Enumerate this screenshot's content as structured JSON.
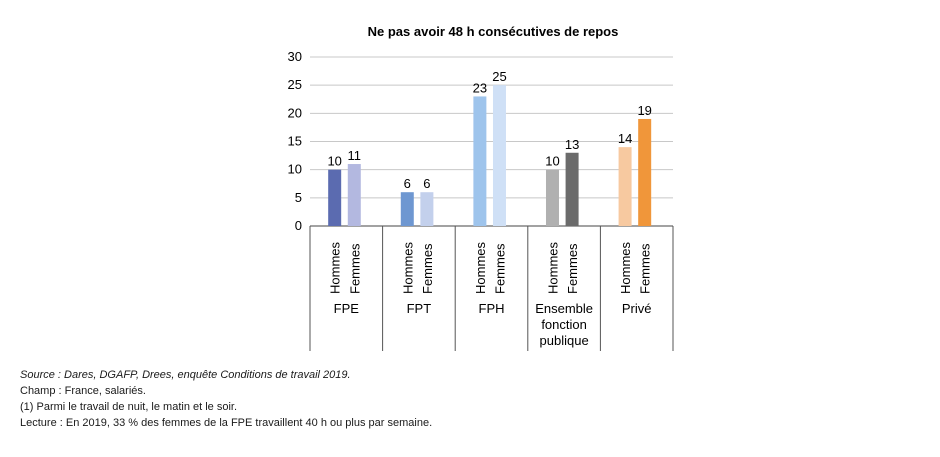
{
  "chart_data": {
    "type": "bar",
    "title": "Ne pas avoir 48 h consécutives de repos",
    "ylim": [
      0,
      30
    ],
    "yticks": [
      0,
      5,
      10,
      15,
      20,
      25,
      30
    ],
    "grid": true,
    "series_labels": [
      "Hommes",
      "Femmes"
    ],
    "categories": [
      {
        "label_lines": [
          "FPE"
        ],
        "values": [
          10,
          11
        ],
        "colors": [
          "#5b6bb0",
          "#b3b8e0"
        ]
      },
      {
        "label_lines": [
          "FPT"
        ],
        "values": [
          6,
          6
        ],
        "colors": [
          "#6e97d1",
          "#c3d0ec"
        ]
      },
      {
        "label_lines": [
          "FPH"
        ],
        "values": [
          23,
          25
        ],
        "colors": [
          "#9ec4ec",
          "#cfe0f6"
        ]
      },
      {
        "label_lines": [
          "Ensemble",
          "fonction",
          "publique"
        ],
        "values": [
          10,
          13
        ],
        "colors": [
          "#b0b0b0",
          "#6b6b6b"
        ]
      },
      {
        "label_lines": [
          "Privé"
        ],
        "values": [
          14,
          19
        ],
        "colors": [
          "#f7c9a0",
          "#f0963a"
        ]
      }
    ]
  },
  "notes": {
    "source": "Source : Dares, DGAFP, Drees, enquête Conditions de travail 2019.",
    "champ": "Champ : France, salariés.",
    "note1": "(1) Parmi le travail de nuit, le matin et le soir.",
    "lecture": "Lecture : En 2019, 33 % des femmes de la FPE travaillent 40 h ou plus par semaine."
  }
}
